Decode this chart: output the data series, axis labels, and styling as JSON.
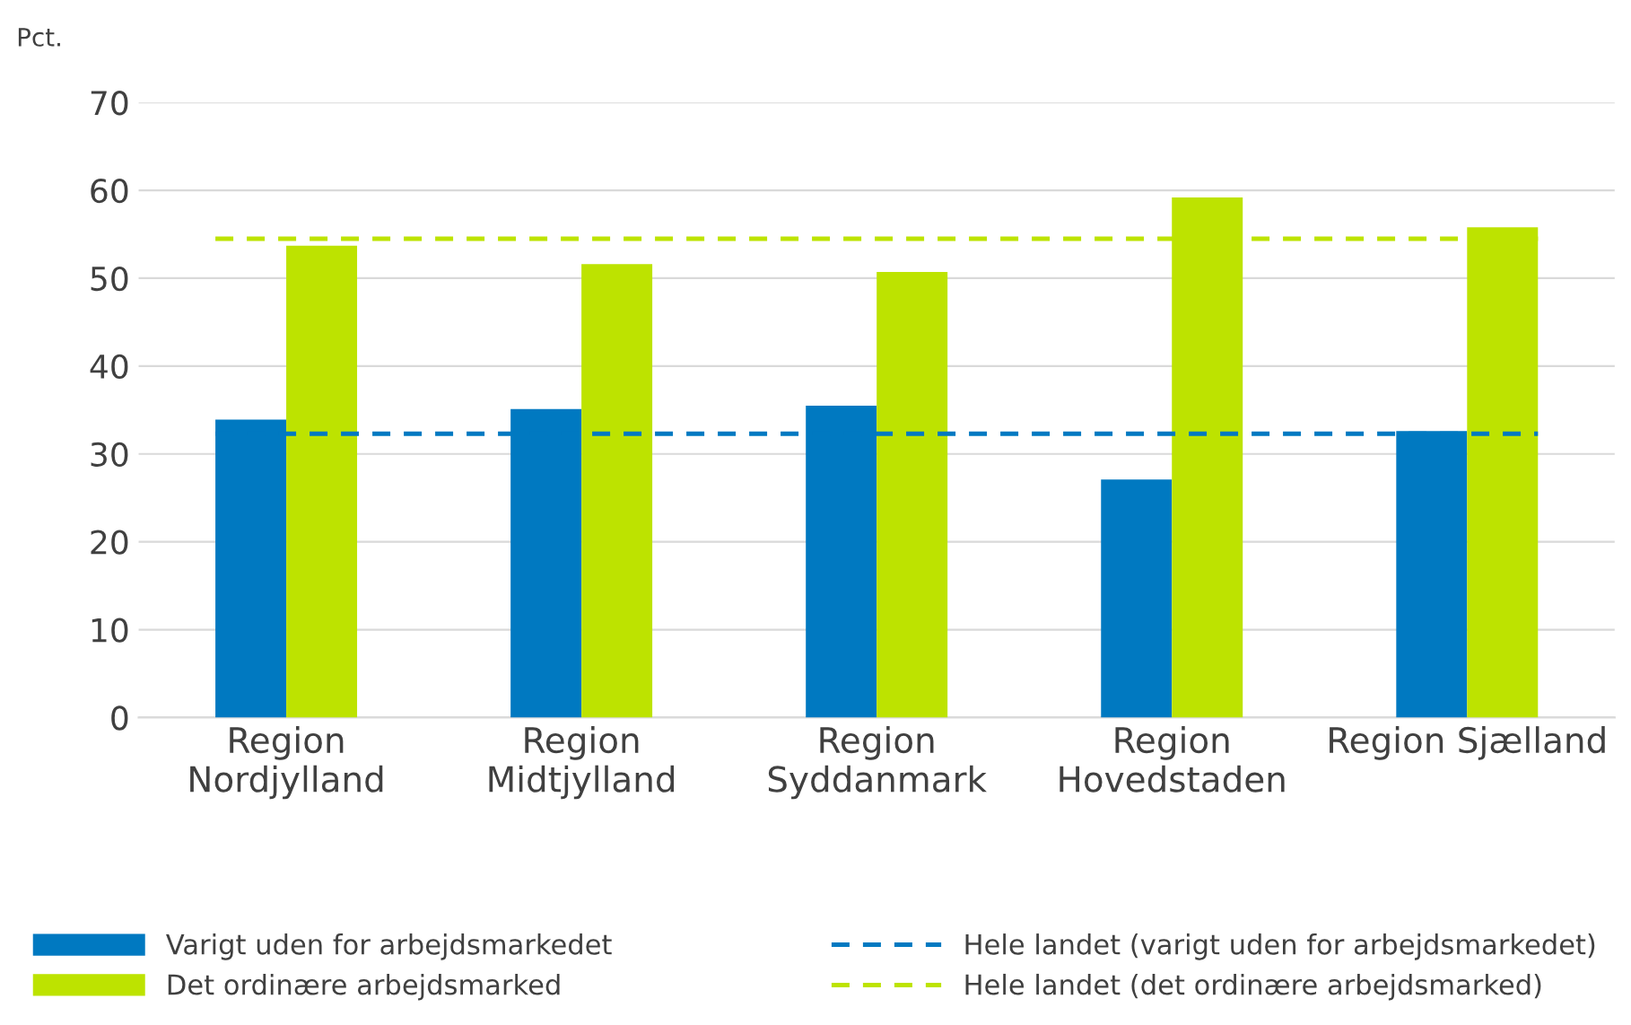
{
  "chart_data": {
    "type": "bar",
    "ylabel": "Pct.",
    "categories": [
      "Region\nNordjylland",
      "Region\nMidtjylland",
      "Region\nSyddanmark",
      "Region\nHovedstaden",
      "Region Sjælland"
    ],
    "series": [
      {
        "name": "Varigt uden for arbejdsmarkedet",
        "color": "#0079c1",
        "values": [
          33.9,
          35.1,
          35.5,
          27.1,
          32.6
        ]
      },
      {
        "name": "Det ordinære arbejdsmarked",
        "color": "#bde300",
        "values": [
          53.7,
          51.6,
          50.7,
          59.2,
          55.8
        ]
      }
    ],
    "ref_lines": [
      {
        "axis": "y",
        "value": 32.3,
        "label": "Hele landet (varigt uden for arbejdsmarkedet)",
        "color": "#0079c1",
        "line_style": "dashed"
      },
      {
        "axis": "y",
        "value": 54.5,
        "label": "Hele landet (det ordinære arbejdsmarked)",
        "color": "#bde300",
        "line_style": "dashed"
      }
    ],
    "ylim": [
      0,
      70
    ],
    "yticks": [
      0,
      10,
      20,
      30,
      40,
      50,
      60,
      70
    ],
    "grid": "y",
    "legend": "bottom"
  }
}
